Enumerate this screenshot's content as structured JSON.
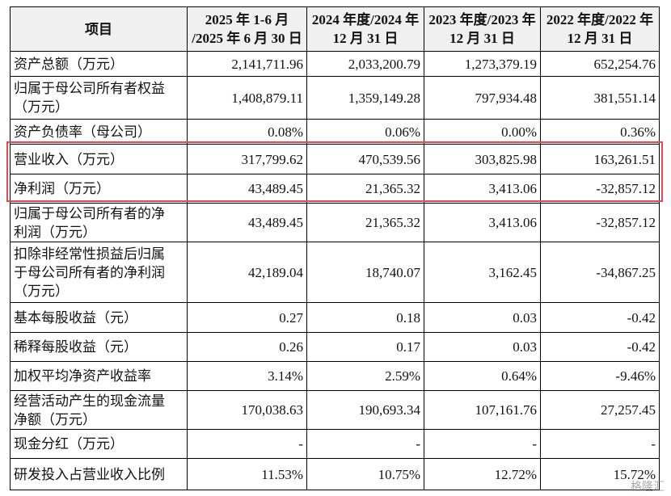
{
  "table": {
    "header": [
      [
        "项目"
      ],
      [
        "2025 年 1-6 月",
        "/2025 年 6 月 30 日"
      ],
      [
        "2024 年度/2024 年",
        "12 月 31 日"
      ],
      [
        "2023 年度/2023 年",
        "12 月 31 日"
      ],
      [
        "2022 年度/2022 年",
        "12 月 31 日"
      ]
    ],
    "rows": [
      {
        "label": [
          "资产总额（万元）"
        ],
        "values": [
          "2,141,711.96",
          "2,033,200.79",
          "1,273,379.19",
          "652,254.76"
        ]
      },
      {
        "label": [
          "归属于母公司所有者权益",
          "（万元）"
        ],
        "values": [
          "1,408,879.11",
          "1,359,149.28",
          "797,934.48",
          "381,551.14"
        ]
      },
      {
        "label": [
          "资产负债率（母公司）"
        ],
        "values": [
          "0.08%",
          "0.06%",
          "0.00%",
          "0.36%"
        ]
      },
      {
        "label": [
          "营业收入（万元）"
        ],
        "values": [
          "317,799.62",
          "470,539.56",
          "303,825.98",
          "163,261.51"
        ]
      },
      {
        "label": [
          "净利润（万元）"
        ],
        "values": [
          "43,489.45",
          "21,365.32",
          "3,413.06",
          "-32,857.12"
        ]
      },
      {
        "label": [
          "归属于母公司所有者的净",
          "利润（万元）"
        ],
        "values": [
          "43,489.45",
          "21,365.32",
          "3,413.06",
          "-32,857.12"
        ]
      },
      {
        "label": [
          "扣除非经常性损益后归属",
          "于母公司所有者的净利润",
          "（万元）"
        ],
        "values": [
          "42,189.04",
          "18,740.07",
          "3,162.45",
          "-34,867.25"
        ]
      },
      {
        "label": [
          "基本每股收益（元）"
        ],
        "values": [
          "0.27",
          "0.18",
          "0.03",
          "-0.42"
        ]
      },
      {
        "label": [
          "稀释每股收益（元）"
        ],
        "values": [
          "0.26",
          "0.17",
          "0.03",
          "-0.42"
        ]
      },
      {
        "label": [
          "加权平均净资产收益率"
        ],
        "values": [
          "3.14%",
          "2.59%",
          "0.64%",
          "-9.46%"
        ]
      },
      {
        "label": [
          "经营活动产生的现金流量",
          "净额（万元）"
        ],
        "values": [
          "170,038.63",
          "190,693.34",
          "107,161.76",
          "27,257.45"
        ]
      },
      {
        "label": [
          "现金分红（万元）"
        ],
        "values": [
          "-",
          "-",
          "-",
          "-"
        ]
      },
      {
        "label": [
          "研发投入占营业收入比例"
        ],
        "values": [
          "11.53%",
          "10.75%",
          "12.72%",
          "15.72%"
        ]
      }
    ]
  },
  "watermark": "格隆汇"
}
